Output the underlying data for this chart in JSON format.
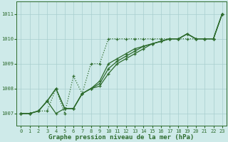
{
  "background_color": "#ceeae9",
  "grid_color": "#a8cece",
  "line_color": "#2d6b2d",
  "title": "Graphe pression niveau de la mer (hPa)",
  "xlim": [
    -0.5,
    23.5
  ],
  "ylim": [
    1006.5,
    1011.5
  ],
  "yticks": [
    1007,
    1008,
    1009,
    1010,
    1011
  ],
  "xticks": [
    0,
    1,
    2,
    3,
    4,
    5,
    6,
    7,
    8,
    9,
    10,
    11,
    12,
    13,
    14,
    15,
    16,
    17,
    18,
    19,
    20,
    21,
    22,
    23
  ],
  "lines": [
    {
      "y": [
        1007.0,
        1007.0,
        1007.1,
        1007.1,
        1008.0,
        1007.0,
        1008.5,
        1007.8,
        1009.0,
        1009.0,
        1010.0,
        1010.0,
        1010.0,
        1010.0,
        1010.0,
        1010.0,
        1010.0,
        1010.0,
        1010.0,
        1010.0,
        1010.0,
        1010.0,
        1010.0,
        1011.0
      ],
      "dotted": true
    },
    {
      "y": [
        1007.0,
        1007.0,
        1007.1,
        1007.5,
        1008.0,
        1007.2,
        1007.2,
        1007.8,
        1008.0,
        1008.3,
        1009.0,
        1009.2,
        1009.4,
        1009.6,
        1009.7,
        1009.8,
        1009.9,
        1010.0,
        1010.0,
        1010.2,
        1010.0,
        1010.0,
        1010.0,
        1011.0
      ],
      "dotted": false
    },
    {
      "y": [
        1007.0,
        1007.0,
        1007.1,
        1007.5,
        1008.0,
        1007.2,
        1007.2,
        1007.8,
        1008.0,
        1008.2,
        1008.8,
        1009.1,
        1009.3,
        1009.5,
        1009.7,
        1009.8,
        1009.9,
        1010.0,
        1010.0,
        1010.2,
        1010.0,
        1010.0,
        1010.0,
        1011.0
      ],
      "dotted": false
    },
    {
      "y": [
        1007.0,
        1007.0,
        1007.1,
        1007.5,
        1007.0,
        1007.2,
        1007.2,
        1007.8,
        1008.0,
        1008.1,
        1008.6,
        1009.0,
        1009.2,
        1009.4,
        1009.6,
        1009.8,
        1009.9,
        1010.0,
        1010.0,
        1010.2,
        1010.0,
        1010.0,
        1010.0,
        1011.0
      ],
      "dotted": false
    }
  ]
}
